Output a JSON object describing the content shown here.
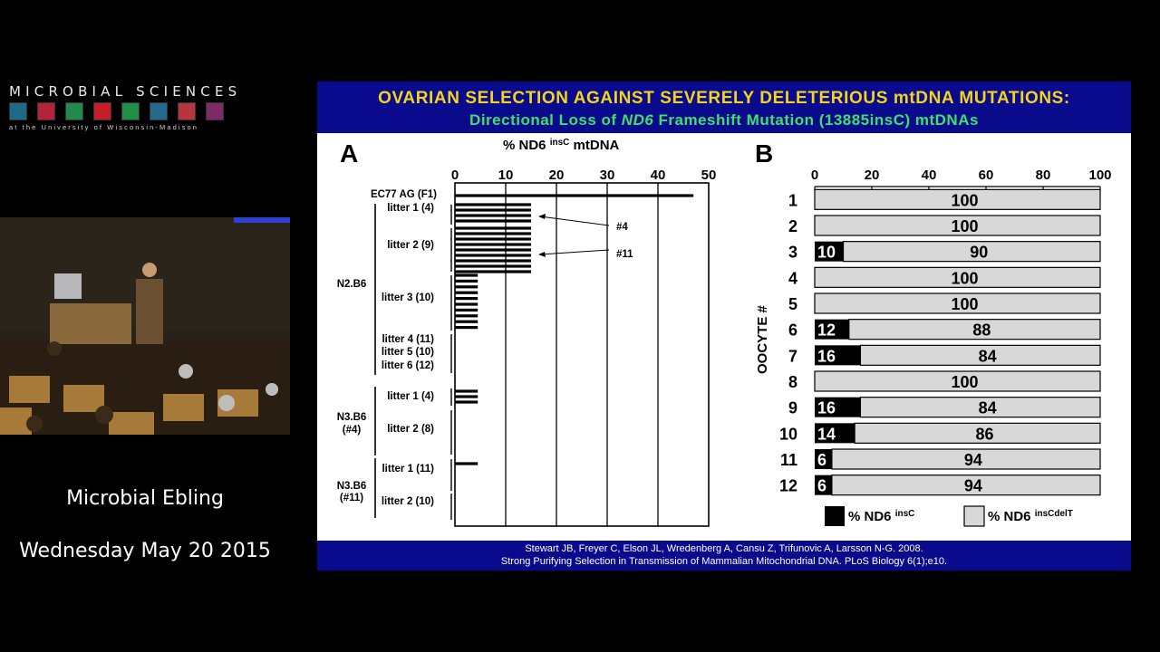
{
  "branding": {
    "title": "MICROBIAL SCIENCES",
    "subtitle": "at the University of Wisconsin-Madison",
    "icon_colors": [
      "#1d6b86",
      "#b3243a",
      "#1f8a4c",
      "#c41e2a",
      "#1e8e4a",
      "#246a8e",
      "#b8343e",
      "#7e2a66"
    ]
  },
  "video": {
    "label": "lecture-speaker-video"
  },
  "caption": {
    "name": "Microbial Ebling",
    "date": "Wednesday May 20 2015"
  },
  "slide": {
    "title_line1": "OVARIAN  SELECTION AGAINST SEVERELY DELETERIOUS mtDNA MUTATIONS:",
    "title_line2_pre": "Directional  Loss of ",
    "title_line2_gene": "ND6",
    "title_line2_post": " Frameshift Mutation  (13885insC) mtDNAs",
    "footer_line1": "Stewart JB, Freyer C, Elson JL, Wredenberg A, Cansu Z,  Trifunovic A, Larsson  N-G. 2008.",
    "footer_line2": "Strong Purifying Selection in Transmission  of Mammalian Mitochondrial DNA.  PLoS Biology 6(1);e10."
  },
  "chart_data": [
    {
      "type": "bar",
      "panel": "A",
      "xlabel_main": "% ND6 ",
      "xlabel_sup": "insC",
      "xlabel_tail": " mtDNA",
      "xlim": [
        0,
        50
      ],
      "xticks": [
        "0",
        "10",
        "20",
        "30",
        "40",
        "50"
      ],
      "groups": [
        {
          "label": "EC77 AG (F1)",
          "bars": [
            47
          ]
        },
        {
          "label": "litter 1 (4)",
          "bars": [
            15,
            15,
            15,
            15
          ]
        },
        {
          "label": "litter 2 (9)",
          "bars": [
            15,
            15,
            15,
            15,
            15,
            15,
            15,
            15,
            15
          ]
        },
        {
          "label": "litter 3 (10)",
          "bars": [
            4.5,
            4.5,
            4.5,
            4.5,
            4.5,
            4.5,
            4.5,
            4.5,
            4.5,
            4.5
          ]
        },
        {
          "label": "litter 4 (11)",
          "bars": []
        },
        {
          "label": "litter 5 (10)",
          "bars": []
        },
        {
          "label": "litter 6 (12)",
          "bars": []
        },
        {
          "label": "litter 1 (4)",
          "bars": [
            4.5,
            4.5,
            4.5
          ]
        },
        {
          "label": "litter 2 (8)",
          "bars": []
        },
        {
          "label": "litter 1 (11)",
          "bars": [
            4.5
          ]
        },
        {
          "label": "litter 2 (10)",
          "bars": []
        }
      ],
      "brackets": [
        "N2.B6",
        "N3.B6",
        "(#4)",
        "N3.B6",
        "(#11)"
      ],
      "annotations": [
        "#4",
        "#11"
      ]
    },
    {
      "type": "bar",
      "panel": "B",
      "ylabel": "OOCYTE #",
      "xlim": [
        0,
        100
      ],
      "xticks": [
        "0",
        "20",
        "40",
        "60",
        "80",
        "100"
      ],
      "categories": [
        "1",
        "2",
        "3",
        "4",
        "5",
        "6",
        "7",
        "8",
        "9",
        "10",
        "11",
        "12"
      ],
      "series": [
        {
          "name": "% ND6 insC",
          "values": [
            0,
            0,
            10,
            0,
            0,
            12,
            16,
            0,
            16,
            14,
            6,
            6
          ]
        },
        {
          "name": "% ND6 insCdelT",
          "values": [
            100,
            100,
            90,
            100,
            100,
            88,
            84,
            100,
            84,
            86,
            94,
            94
          ]
        }
      ],
      "legend": [
        {
          "pre": "% ND6 ",
          "sup": "insC",
          "color": "#000000"
        },
        {
          "pre": "% ND6 ",
          "sup": "insCdelT",
          "color": "#d8d8d8"
        }
      ]
    }
  ]
}
